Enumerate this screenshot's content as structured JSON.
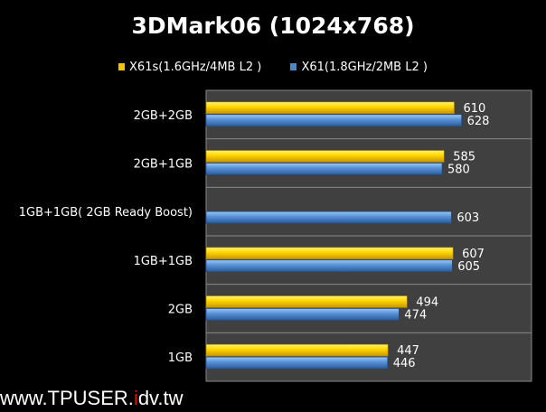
{
  "chart_data": {
    "type": "bar",
    "orientation": "horizontal",
    "title": "3DMark06 (1024x768)",
    "categories": [
      "2GB+2GB",
      "2GB+1GB",
      "1GB+1GB( 2GB Ready Boost)",
      "1GB+1GB",
      "2GB",
      "1GB"
    ],
    "series": [
      {
        "name": "X61s(1.6GHz/4MB L2 )",
        "color": "#f5c400",
        "values": [
          610,
          585,
          null,
          607,
          494,
          447
        ]
      },
      {
        "name": "X61(1.8GHz/2MB L2 )",
        "color": "#4a86cc",
        "values": [
          628,
          580,
          603,
          605,
          474,
          446
        ]
      }
    ],
    "xlim": [
      0,
      800
    ],
    "grid": true,
    "legend": "top",
    "plot_bg": "#404040"
  },
  "watermark": {
    "pre": "www.TPUSER.",
    "red": "i",
    "post": "dv.tw"
  }
}
